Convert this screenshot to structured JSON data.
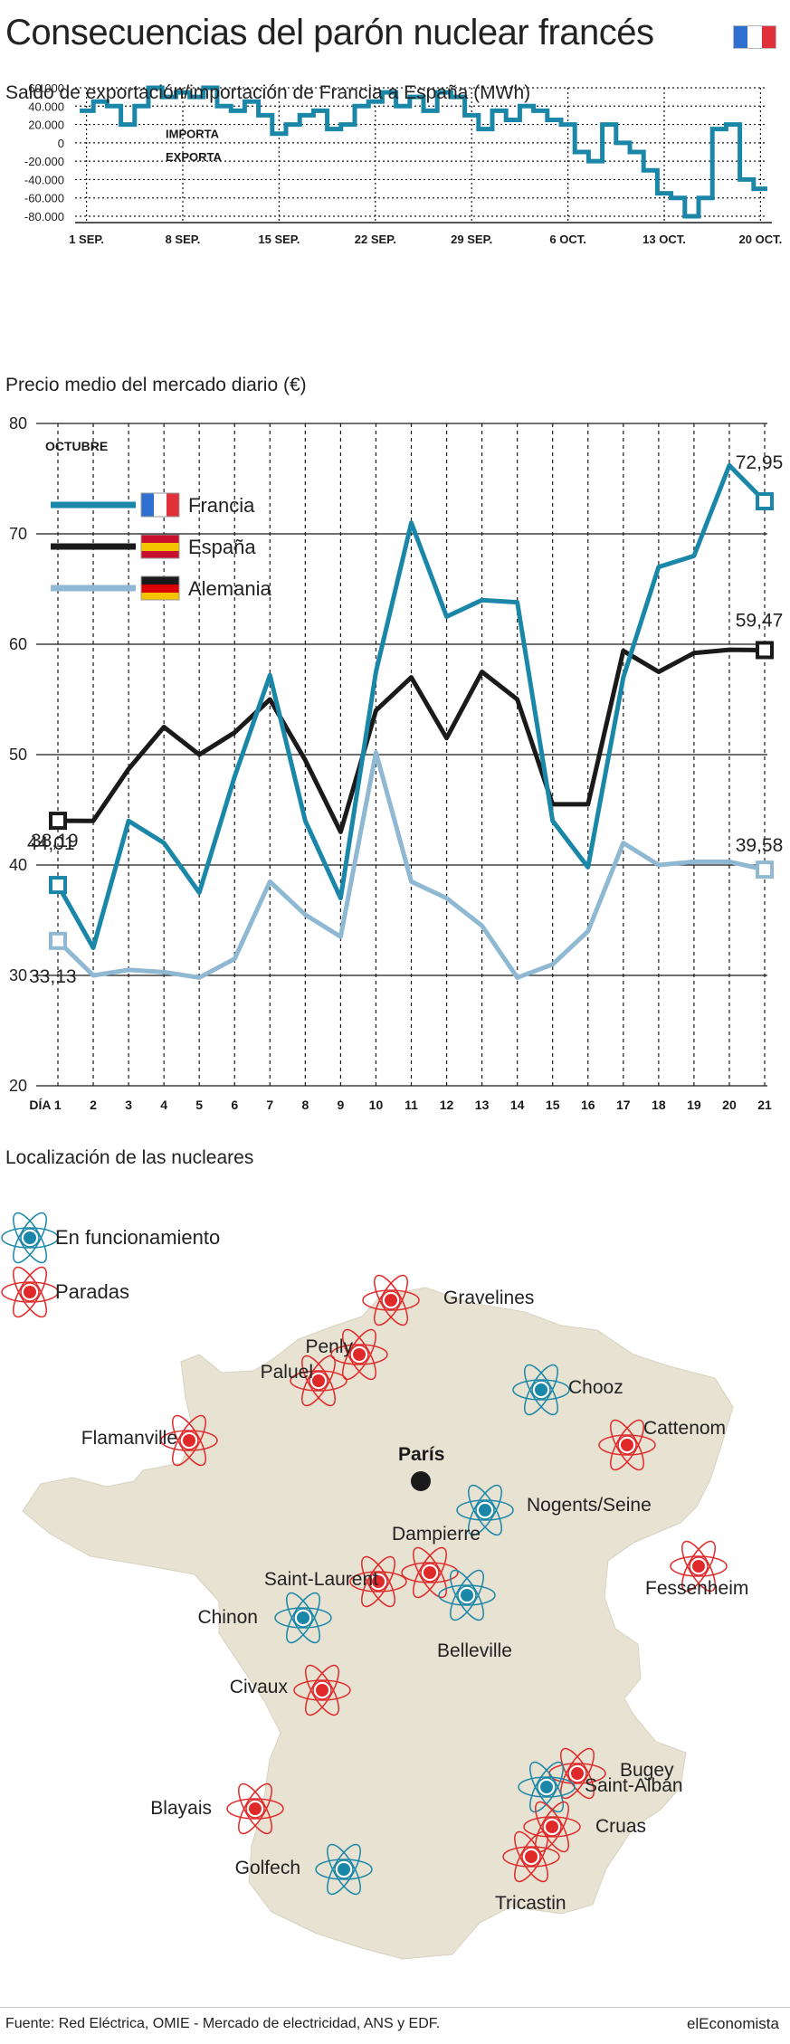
{
  "title": "Consecuencias del parón nuclear francés",
  "colors": {
    "francia": "#1a87a8",
    "espana": "#1a1a1a",
    "alemania": "#8fb8d2",
    "running": "#1a87a8",
    "stopped": "#e02a2a",
    "map_fill": "#e7e2d2"
  },
  "chart_data": [
    {
      "type": "line",
      "title": "Saldo de exportación/importación de Francia a España (MWh)",
      "step": true,
      "ylim": [
        -80000,
        60000
      ],
      "yticks": [
        "60.000",
        "40.000",
        "20.000",
        "0",
        "-20.000",
        "-40.000",
        "-60.000",
        "-80.000"
      ],
      "ytick_values": [
        60000,
        40000,
        20000,
        0,
        -20000,
        -40000,
        -60000,
        -80000
      ],
      "xticks": [
        "1 SEP.",
        "8 SEP.",
        "15 SEP.",
        "22 SEP.",
        "29 SEP.",
        "6 OCT.",
        "13 OCT.",
        "20 OCT."
      ],
      "xtick_days": [
        1,
        8,
        15,
        22,
        29,
        36,
        43,
        50
      ],
      "annotations": {
        "import": "IMPORTA",
        "export": "EXPORTA"
      },
      "x": [
        1,
        2,
        3,
        4,
        5,
        6,
        7,
        8,
        9,
        10,
        11,
        12,
        13,
        14,
        15,
        16,
        17,
        18,
        19,
        20,
        21,
        22,
        23,
        24,
        25,
        26,
        27,
        28,
        29,
        30,
        31,
        32,
        33,
        34,
        35,
        36,
        37,
        38,
        39,
        40,
        41,
        42,
        43,
        44,
        45,
        46,
        47,
        48,
        49,
        50
      ],
      "values": [
        35000,
        45000,
        40000,
        20000,
        40000,
        60000,
        50000,
        55000,
        50000,
        60000,
        40000,
        35000,
        45000,
        30000,
        10000,
        20000,
        30000,
        35000,
        15000,
        20000,
        40000,
        45000,
        55000,
        40000,
        50000,
        35000,
        55000,
        50000,
        30000,
        15000,
        35000,
        25000,
        40000,
        35000,
        25000,
        20000,
        -10000,
        -20000,
        20000,
        0,
        -10000,
        -30000,
        -55000,
        -60000,
        -80000,
        -60000,
        15000,
        20000,
        -40000,
        -50000
      ]
    },
    {
      "type": "line",
      "title": "Precio medio del mercado diario (€)",
      "subtitle": "OCTUBRE",
      "ylim": [
        20,
        80
      ],
      "yticks": [
        20,
        30,
        40,
        50,
        60,
        70,
        80
      ],
      "xticks": [
        "DÍA 1",
        "2",
        "3",
        "4",
        "5",
        "6",
        "7",
        "8",
        "9",
        "10",
        "11",
        "12",
        "13",
        "14",
        "15",
        "16",
        "17",
        "18",
        "19",
        "20",
        "21"
      ],
      "x": [
        1,
        2,
        3,
        4,
        5,
        6,
        7,
        8,
        9,
        10,
        11,
        12,
        13,
        14,
        15,
        16,
        17,
        18,
        19,
        20,
        21
      ],
      "series": [
        {
          "name": "Francia",
          "values": [
            38.19,
            32.5,
            44,
            42,
            37.5,
            48,
            57.2,
            44,
            37,
            57.5,
            71,
            62.5,
            64,
            63.8,
            44,
            39.8,
            57,
            67,
            68,
            76.2,
            72.95
          ],
          "start_label": "38,19",
          "end_label": "72,95"
        },
        {
          "name": "España",
          "values": [
            44.01,
            44,
            48.7,
            52.5,
            50,
            52,
            55,
            49.5,
            43,
            54,
            57,
            51.5,
            57.5,
            55,
            45.5,
            45.5,
            59.4,
            57.5,
            59.2,
            59.5,
            59.47
          ],
          "start_label": "44,01",
          "end_label": "59,47"
        },
        {
          "name": "Alemania",
          "values": [
            33.13,
            30,
            30.5,
            30.3,
            29.8,
            31.5,
            38.5,
            35.5,
            33.5,
            50.2,
            38.5,
            37,
            34.5,
            29.8,
            31,
            34,
            42,
            40,
            40.3,
            40.3,
            39.58
          ],
          "start_label": "33,13",
          "end_label": "39,58"
        }
      ]
    }
  ],
  "map": {
    "title": "Localización de las nucleares",
    "legend": {
      "running": "En funcionamiento",
      "stopped": "Paradas"
    },
    "capital": "París",
    "plants": [
      {
        "name": "Gravelines",
        "status": "stopped"
      },
      {
        "name": "Penly",
        "status": "stopped"
      },
      {
        "name": "Paluel",
        "status": "stopped"
      },
      {
        "name": "Chooz",
        "status": "running"
      },
      {
        "name": "Cattenom",
        "status": "stopped"
      },
      {
        "name": "Flamanville",
        "status": "stopped"
      },
      {
        "name": "Nogents/Seine",
        "status": "running"
      },
      {
        "name": "Dampierre",
        "status": "stopped"
      },
      {
        "name": "Saint-Laurent",
        "status": "stopped"
      },
      {
        "name": "Fessenheim",
        "status": "stopped"
      },
      {
        "name": "Chinon",
        "status": "running"
      },
      {
        "name": "Belleville",
        "status": "running"
      },
      {
        "name": "Civaux",
        "status": "stopped"
      },
      {
        "name": "Bugey",
        "status": "stopped"
      },
      {
        "name": "Saint-Alban",
        "status": "running"
      },
      {
        "name": "Blayais",
        "status": "stopped"
      },
      {
        "name": "Cruas",
        "status": "stopped"
      },
      {
        "name": "Golfech",
        "status": "running"
      },
      {
        "name": "Tricastin",
        "status": "stopped"
      }
    ]
  },
  "footer": {
    "source": "Fuente: Red Eléctrica, OMIE - Mercado de electricidad, ANS y EDF.",
    "brand": "elEconomista"
  }
}
